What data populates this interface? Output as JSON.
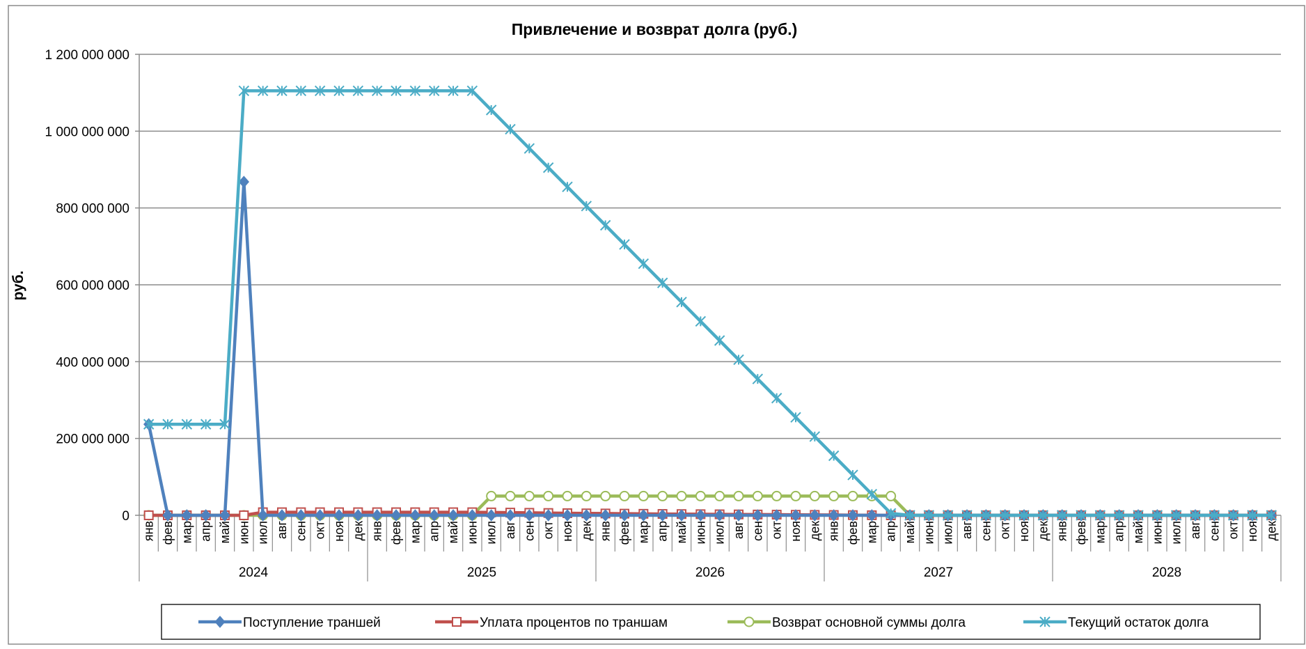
{
  "chart_data": {
    "type": "line",
    "title": "Привлечение и возврат долга (руб.)",
    "ylabel": "руб.",
    "xlabel": "",
    "ylim": [
      0,
      1200000000
    ],
    "yticks": [
      0,
      200000000,
      400000000,
      600000000,
      800000000,
      1000000000,
      1200000000
    ],
    "ytick_labels": [
      "0",
      "200 000 000",
      "400 000 000",
      "600 000 000",
      "800 000 000",
      "1 000 000 000",
      "1 200 000 000"
    ],
    "grid": "horizontal",
    "legend_position": "bottom",
    "years": [
      "2024",
      "2025",
      "2026",
      "2027",
      "2028"
    ],
    "months": [
      "янв",
      "фев",
      "мар",
      "апр",
      "май",
      "июн",
      "июл",
      "авг",
      "сен",
      "окт",
      "ноя",
      "дек"
    ],
    "series": [
      {
        "name": "Поступление траншей",
        "color": "#4F81BD",
        "marker": "diamond",
        "values": [
          237000000,
          0,
          0,
          0,
          0,
          868000000,
          0,
          0,
          0,
          0,
          0,
          0,
          0,
          0,
          0,
          0,
          0,
          0,
          0,
          0,
          0,
          0,
          0,
          0,
          0,
          0,
          0,
          0,
          0,
          0,
          0,
          0,
          0,
          0,
          0,
          0,
          0,
          0,
          0,
          0,
          0,
          0,
          0,
          0,
          0,
          0,
          0,
          0,
          0,
          0,
          0,
          0,
          0,
          0,
          0,
          0,
          0,
          0,
          0,
          0
        ]
      },
      {
        "name": "Уплата процентов по траншам",
        "color": "#C0504D",
        "marker": "square",
        "values": [
          0,
          0,
          0,
          0,
          0,
          0,
          8000000,
          8000000,
          8000000,
          8000000,
          8000000,
          8000000,
          8000000,
          8000000,
          8000000,
          8000000,
          8000000,
          8000000,
          7500000,
          7000000,
          6500000,
          6000000,
          5500000,
          5000000,
          4700000,
          4300000,
          3900000,
          3500000,
          3200000,
          2900000,
          2600000,
          2300000,
          2000000,
          1700000,
          1400000,
          1100000,
          800000,
          500000,
          200000,
          0,
          0,
          0,
          0,
          0,
          0,
          0,
          0,
          0,
          0,
          0,
          0,
          0,
          0,
          0,
          0,
          0,
          0,
          0,
          0,
          0
        ]
      },
      {
        "name": "Возврат основной суммы долга",
        "color": "#9BBB59",
        "marker": "circle",
        "values": [
          0,
          0,
          0,
          0,
          0,
          0,
          0,
          0,
          0,
          0,
          0,
          0,
          0,
          0,
          0,
          0,
          0,
          0,
          50000000,
          50000000,
          50000000,
          50000000,
          50000000,
          50000000,
          50000000,
          50000000,
          50000000,
          50000000,
          50000000,
          50000000,
          50000000,
          50000000,
          50000000,
          50000000,
          50000000,
          50000000,
          50000000,
          50000000,
          50000000,
          50000000,
          0,
          0,
          0,
          0,
          0,
          0,
          0,
          0,
          0,
          0,
          0,
          0,
          0,
          0,
          0,
          0,
          0,
          0,
          0,
          0
        ]
      },
      {
        "name": "Текущий остаток долга",
        "color": "#4BACC6",
        "marker": "star",
        "values": [
          237000000,
          237000000,
          237000000,
          237000000,
          237000000,
          1105000000,
          1105000000,
          1105000000,
          1105000000,
          1105000000,
          1105000000,
          1105000000,
          1105000000,
          1105000000,
          1105000000,
          1105000000,
          1105000000,
          1105000000,
          1055000000,
          1005000000,
          955000000,
          905000000,
          855000000,
          805000000,
          755000000,
          705000000,
          655000000,
          605000000,
          555000000,
          505000000,
          455000000,
          405000000,
          355000000,
          305000000,
          255000000,
          205000000,
          155000000,
          105000000,
          55000000,
          5000000,
          0,
          0,
          0,
          0,
          0,
          0,
          0,
          0,
          0,
          0,
          0,
          0,
          0,
          0,
          0,
          0,
          0,
          0,
          0,
          0
        ]
      }
    ]
  }
}
